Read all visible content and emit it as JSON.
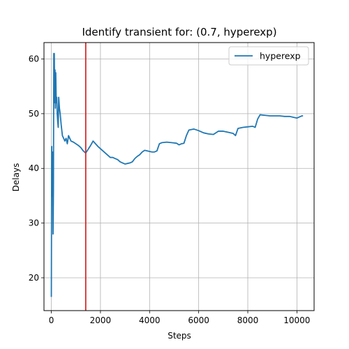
{
  "chart_data": {
    "type": "line",
    "title": "Identify transient for: (0.7, hyperexp)",
    "xlabel": "Steps",
    "ylabel": "Delays",
    "xlim": [
      -300,
      10700
    ],
    "ylim": [
      14,
      63
    ],
    "xticks": [
      0,
      2000,
      4000,
      6000,
      8000,
      10000
    ],
    "xtick_labels": [
      "0",
      "2000",
      "4000",
      "6000",
      "8000",
      "10000"
    ],
    "yticks": [
      20,
      30,
      40,
      50,
      60
    ],
    "ytick_labels": [
      "20",
      "30",
      "40",
      "50",
      "60"
    ],
    "grid": true,
    "legend_position": "top-right",
    "series": [
      {
        "name": "hyperexp",
        "color": "#1f77b4",
        "points": [
          [
            0,
            16.5
          ],
          [
            15,
            44
          ],
          [
            30,
            35
          ],
          [
            45,
            43
          ],
          [
            60,
            38
          ],
          [
            70,
            28
          ],
          [
            85,
            36
          ],
          [
            100,
            61
          ],
          [
            110,
            60
          ],
          [
            120,
            61
          ],
          [
            135,
            52
          ],
          [
            150,
            58
          ],
          [
            165,
            51
          ],
          [
            180,
            57.5
          ],
          [
            200,
            52
          ],
          [
            220,
            53
          ],
          [
            240,
            50
          ],
          [
            260,
            48.5
          ],
          [
            280,
            47.5
          ],
          [
            300,
            53
          ],
          [
            330,
            51
          ],
          [
            360,
            50
          ],
          [
            400,
            48
          ],
          [
            450,
            46
          ],
          [
            500,
            45.5
          ],
          [
            550,
            45
          ],
          [
            600,
            45.5
          ],
          [
            650,
            44.5
          ],
          [
            700,
            46
          ],
          [
            750,
            45.5
          ],
          [
            800,
            45
          ],
          [
            900,
            44.8
          ],
          [
            1000,
            44.5
          ],
          [
            1100,
            44.2
          ],
          [
            1200,
            43.8
          ],
          [
            1300,
            43.2
          ],
          [
            1400,
            42.8
          ],
          [
            1500,
            43.5
          ],
          [
            1600,
            44.2
          ],
          [
            1700,
            45
          ],
          [
            1800,
            44.5
          ],
          [
            1900,
            44
          ],
          [
            2000,
            43.6
          ],
          [
            2100,
            43.2
          ],
          [
            2200,
            42.8
          ],
          [
            2300,
            42.4
          ],
          [
            2400,
            42
          ],
          [
            2500,
            42
          ],
          [
            2600,
            41.8
          ],
          [
            2700,
            41.6
          ],
          [
            2800,
            41.2
          ],
          [
            2900,
            41
          ],
          [
            3000,
            40.8
          ],
          [
            3100,
            40.9
          ],
          [
            3200,
            41
          ],
          [
            3300,
            41.2
          ],
          [
            3400,
            41.8
          ],
          [
            3500,
            42.2
          ],
          [
            3600,
            42.5
          ],
          [
            3700,
            43
          ],
          [
            3800,
            43.3
          ],
          [
            3900,
            43.2
          ],
          [
            4000,
            43.1
          ],
          [
            4100,
            43
          ],
          [
            4200,
            43
          ],
          [
            4300,
            43.2
          ],
          [
            4400,
            44.5
          ],
          [
            4500,
            44.7
          ],
          [
            4700,
            44.8
          ],
          [
            4900,
            44.7
          ],
          [
            5100,
            44.6
          ],
          [
            5200,
            44.3
          ],
          [
            5300,
            44.5
          ],
          [
            5400,
            44.6
          ],
          [
            5500,
            46
          ],
          [
            5600,
            47
          ],
          [
            5800,
            47.2
          ],
          [
            6000,
            46.9
          ],
          [
            6200,
            46.5
          ],
          [
            6400,
            46.3
          ],
          [
            6600,
            46.2
          ],
          [
            6800,
            46.8
          ],
          [
            7000,
            46.8
          ],
          [
            7200,
            46.6
          ],
          [
            7400,
            46.4
          ],
          [
            7500,
            46
          ],
          [
            7600,
            47.3
          ],
          [
            7800,
            47.5
          ],
          [
            8000,
            47.6
          ],
          [
            8200,
            47.7
          ],
          [
            8300,
            47.5
          ],
          [
            8400,
            49
          ],
          [
            8500,
            49.8
          ],
          [
            8700,
            49.7
          ],
          [
            8900,
            49.6
          ],
          [
            9100,
            49.6
          ],
          [
            9300,
            49.6
          ],
          [
            9500,
            49.5
          ],
          [
            9700,
            49.5
          ],
          [
            9900,
            49.3
          ],
          [
            10000,
            49.2
          ],
          [
            10100,
            49.4
          ],
          [
            10200,
            49.6
          ],
          [
            10250,
            49.6
          ]
        ]
      }
    ],
    "annotations": [
      {
        "type": "vertical-line",
        "x": 1400,
        "color": "#d62728"
      }
    ]
  }
}
